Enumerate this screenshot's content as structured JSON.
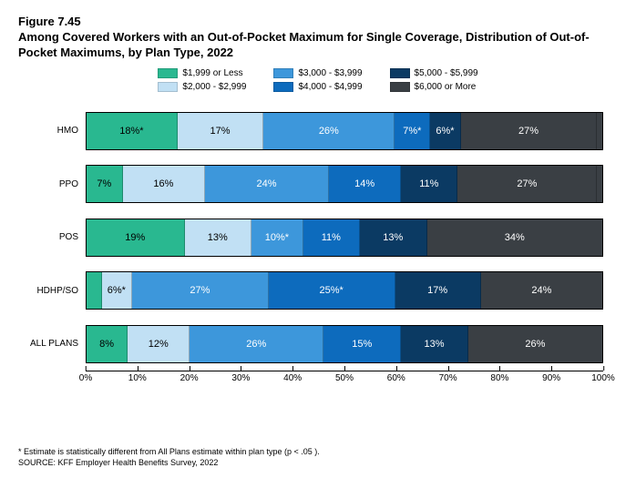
{
  "figure_label": "Figure 7.45",
  "title": "Among Covered Workers with an Out-of-Pocket Maximum for Single Coverage, Distribution of Out-of-Pocket Maximums, by Plan Type, 2022",
  "legend": {
    "items": [
      {
        "label": "$1,999 or Less",
        "color": "#29b890"
      },
      {
        "label": "$2,000 - $2,999",
        "color": "#c1e0f4"
      },
      {
        "label": "$3,000 - $3,999",
        "color": "#3d97db"
      },
      {
        "label": "$4,000 - $4,999",
        "color": "#0d6bbd"
      },
      {
        "label": "$5,000 - $5,999",
        "color": "#0b3a63"
      },
      {
        "label": "$6,000 or More",
        "color": "#3a3f44"
      }
    ]
  },
  "chart": {
    "type": "stacked-bar-horizontal",
    "categories": [
      "HMO",
      "PPO",
      "POS",
      "HDHP/SO",
      "ALL PLANS"
    ],
    "xlim": [
      0,
      100
    ],
    "xtick_step": 10,
    "xtick_suffix": "%",
    "bar_border": "#000000",
    "series_colors": [
      "#29b890",
      "#c1e0f4",
      "#3d97db",
      "#0d6bbd",
      "#0b3a63",
      "#3a3f44"
    ],
    "text_color_light": "#ffffff",
    "text_color_dark": "#000000",
    "rows": [
      {
        "cat": "HMO",
        "vals": [
          18,
          17,
          26,
          7,
          6,
          27
        ],
        "labels": [
          "18%*",
          "17%",
          "26%",
          "7%*",
          "6%*",
          "27%"
        ],
        "missing": 1
      },
      {
        "cat": "PPO",
        "vals": [
          7,
          16,
          24,
          14,
          11,
          27
        ],
        "labels": [
          "7%",
          "16%",
          "24%",
          "14%",
          "11%",
          "27%"
        ],
        "missing": 1
      },
      {
        "cat": "POS",
        "vals": [
          19,
          13,
          10,
          11,
          13,
          34
        ],
        "labels": [
          "19%",
          "13%",
          "10%*",
          "11%",
          "13%",
          "34%"
        ],
        "missing": 0
      },
      {
        "cat": "HDHP/SO",
        "vals": [
          3,
          6,
          27,
          25,
          17,
          24
        ],
        "labels": [
          "",
          "6%*",
          "27%",
          "25%*",
          "17%",
          "24%"
        ],
        "missing": -2
      },
      {
        "cat": "ALL PLANS",
        "vals": [
          8,
          12,
          26,
          15,
          13,
          26
        ],
        "labels": [
          "8%",
          "12%",
          "26%",
          "15%",
          "13%",
          "26%"
        ],
        "missing": 0
      }
    ]
  },
  "footnote": "* Estimate is statistically different from All Plans estimate within plan type (p < .05 ).",
  "source": "SOURCE: KFF Employer Health Benefits Survey, 2022"
}
